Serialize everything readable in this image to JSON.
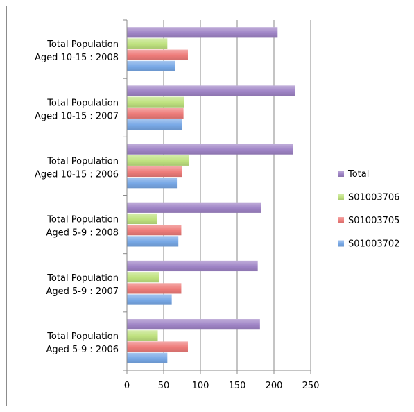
{
  "chart_data": {
    "type": "bar",
    "orientation": "horizontal",
    "title": "",
    "xlabel": "",
    "ylabel": "",
    "categories": [
      "Total Population Aged 10-15 : 2008",
      "Total Population Aged 10-15 : 2007",
      "Total Population Aged 10-15 : 2006",
      "Total Population Aged 5-9 : 2008",
      "Total Population Aged 5-9 : 2007",
      "Total Population Aged 5-9 : 2006"
    ],
    "category_lines": [
      [
        "Total Population",
        "Aged 10-15 : 2008"
      ],
      [
        "Total Population",
        "Aged 10-15 : 2007"
      ],
      [
        "Total Population",
        "Aged 10-15 : 2006"
      ],
      [
        "Total Population",
        "Aged 5-9 : 2008"
      ],
      [
        "Total Population",
        "Aged 5-9 : 2007"
      ],
      [
        "Total Population",
        "Aged 5-9 : 2006"
      ]
    ],
    "series": [
      {
        "name": "Total",
        "color": "#9f84c6",
        "values": [
          205,
          229,
          226,
          183,
          178,
          181
        ]
      },
      {
        "name": "S01003706",
        "color": "#bfe27f",
        "values": [
          55,
          78,
          84,
          41,
          44,
          42
        ]
      },
      {
        "name": "S01003705",
        "color": "#ee7c7a",
        "values": [
          83,
          77,
          75,
          74,
          74,
          83
        ]
      },
      {
        "name": "S01003702",
        "color": "#78a8e6",
        "values": [
          66,
          75,
          68,
          70,
          61,
          55
        ]
      }
    ],
    "legend_order": [
      "Total",
      "S01003706",
      "S01003705",
      "S01003702"
    ],
    "xlim": [
      0,
      250
    ],
    "xticks": [
      0,
      50,
      100,
      150,
      200,
      250
    ],
    "grid": "vertical",
    "legend_position": "right"
  }
}
